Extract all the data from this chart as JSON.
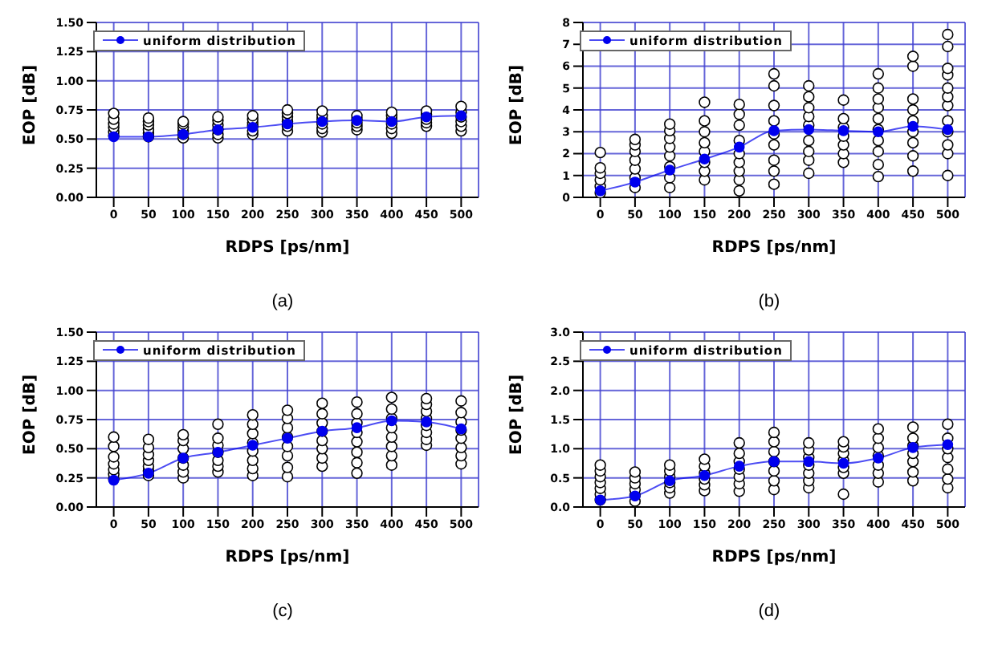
{
  "chart_data": [
    {
      "type": "line",
      "xlabel": "RDPS [ps/nm]",
      "ylabel": "EOP [dB]",
      "annotations": [
        "(a)"
      ],
      "x": [
        0,
        50,
        100,
        150,
        200,
        250,
        300,
        350,
        400,
        450,
        500
      ],
      "xlim": [
        -25,
        525
      ],
      "xticks": [
        0,
        50,
        100,
        150,
        200,
        250,
        300,
        350,
        400,
        450,
        500
      ],
      "ylim": [
        0,
        1.5
      ],
      "yticks": [
        {
          "value": 0,
          "label": "0.00"
        },
        0.25,
        {
          "value": 0.5,
          "label": "0.50"
        },
        0.75,
        {
          "value": 1,
          "label": "1.00"
        },
        1.25,
        {
          "value": 1.5,
          "label": "1.50"
        }
      ],
      "grid": true,
      "legend": "top left",
      "series": [
        {
          "type": "scatter",
          "color": "#000000",
          "marker": "circle",
          "x": [
            0,
            0,
            0,
            0,
            0,
            0,
            50,
            50,
            50,
            50,
            50,
            50,
            100,
            100,
            100,
            100,
            100,
            100,
            150,
            150,
            150,
            150,
            150,
            150,
            200,
            200,
            200,
            200,
            200,
            200,
            250,
            250,
            250,
            250,
            250,
            250,
            300,
            300,
            300,
            300,
            300,
            300,
            350,
            350,
            350,
            350,
            350,
            400,
            400,
            400,
            400,
            400,
            400,
            450,
            450,
            450,
            450,
            450,
            500,
            500,
            500,
            500,
            500,
            500
          ],
          "values": [
            0.53,
            0.56,
            0.6,
            0.63,
            0.67,
            0.72,
            0.52,
            0.55,
            0.58,
            0.62,
            0.65,
            0.68,
            0.51,
            0.54,
            0.57,
            0.6,
            0.63,
            0.65,
            0.51,
            0.54,
            0.58,
            0.62,
            0.66,
            0.69,
            0.54,
            0.57,
            0.61,
            0.64,
            0.67,
            0.7,
            0.57,
            0.61,
            0.65,
            0.69,
            0.72,
            0.75,
            0.56,
            0.59,
            0.63,
            0.67,
            0.7,
            0.74,
            0.58,
            0.61,
            0.64,
            0.67,
            0.7,
            0.55,
            0.59,
            0.63,
            0.67,
            0.7,
            0.73,
            0.61,
            0.64,
            0.67,
            0.71,
            0.74,
            0.57,
            0.61,
            0.65,
            0.69,
            0.73,
            0.78
          ]
        },
        {
          "name": "uniform distribution",
          "color": "#0000ee",
          "marker": "circle",
          "values": [
            0.52,
            0.52,
            0.54,
            0.58,
            0.6,
            0.63,
            0.65,
            0.66,
            0.65,
            0.69,
            0.7
          ]
        }
      ]
    },
    {
      "type": "line",
      "xlabel": "RDPS [ps/nm]",
      "ylabel": "EOP [dB]",
      "annotations": [
        "(b)"
      ],
      "x": [
        0,
        50,
        100,
        150,
        200,
        250,
        300,
        350,
        400,
        450,
        500
      ],
      "xlim": [
        -25,
        525
      ],
      "xticks": [
        0,
        50,
        100,
        150,
        200,
        250,
        300,
        350,
        400,
        450,
        500
      ],
      "ylim": [
        0,
        8
      ],
      "yticks": [
        0,
        1,
        2,
        3,
        4,
        5,
        6,
        7,
        8
      ],
      "grid": true,
      "legend": "top left",
      "series": [
        {
          "type": "scatter",
          "color": "#000000",
          "marker": "circle",
          "x": [
            0,
            0,
            0,
            0,
            0,
            0,
            50,
            50,
            50,
            50,
            50,
            50,
            50,
            100,
            100,
            100,
            100,
            100,
            100,
            100,
            100,
            150,
            150,
            150,
            150,
            150,
            150,
            150,
            150,
            200,
            200,
            200,
            200,
            200,
            200,
            200,
            200,
            200,
            250,
            250,
            250,
            250,
            250,
            250,
            250,
            250,
            250,
            300,
            300,
            300,
            300,
            300,
            300,
            300,
            300,
            300,
            350,
            350,
            350,
            350,
            350,
            350,
            350,
            400,
            400,
            400,
            400,
            400,
            400,
            400,
            400,
            400,
            400,
            450,
            450,
            450,
            450,
            450,
            450,
            450,
            450,
            450,
            500,
            500,
            500,
            500,
            500,
            500,
            500,
            500,
            500,
            500,
            500,
            500
          ],
          "values": [
            0.2,
            0.5,
            0.8,
            1.1,
            1.35,
            2.05,
            0.45,
            0.9,
            1.3,
            1.7,
            2.1,
            2.4,
            2.65,
            0.45,
            0.9,
            1.4,
            1.9,
            2.3,
            2.7,
            3.05,
            3.35,
            0.8,
            1.2,
            1.6,
            2.1,
            2.5,
            3.0,
            3.5,
            4.35,
            0.3,
            0.8,
            1.2,
            1.6,
            2.0,
            2.6,
            3.3,
            3.8,
            4.25,
            0.6,
            1.2,
            1.7,
            2.4,
            2.9,
            3.5,
            4.2,
            5.1,
            5.65,
            1.1,
            1.7,
            2.1,
            2.6,
            3.3,
            3.7,
            4.1,
            4.6,
            5.1,
            1.6,
            2.0,
            2.4,
            2.8,
            3.2,
            3.6,
            4.45,
            0.95,
            1.5,
            2.1,
            2.6,
            3.1,
            3.6,
            4.1,
            4.5,
            5.0,
            5.65,
            1.2,
            1.9,
            2.5,
            3.0,
            3.5,
            4.0,
            4.5,
            6.0,
            6.45,
            1.0,
            2.0,
            2.4,
            3.0,
            3.5,
            4.2,
            4.6,
            5.0,
            5.6,
            5.9,
            6.9,
            7.45
          ]
        },
        {
          "name": "uniform distribution",
          "color": "#0000ee",
          "marker": "circle",
          "values": [
            0.3,
            0.7,
            1.25,
            1.75,
            2.3,
            3.05,
            3.1,
            3.05,
            3.0,
            3.25,
            3.1
          ]
        }
      ]
    },
    {
      "type": "line",
      "xlabel": "RDPS [ps/nm]",
      "ylabel": "EOP [dB]",
      "annotations": [
        "(c)"
      ],
      "x": [
        0,
        50,
        100,
        150,
        200,
        250,
        300,
        350,
        400,
        450,
        500
      ],
      "xlim": [
        -25,
        525
      ],
      "xticks": [
        0,
        50,
        100,
        150,
        200,
        250,
        300,
        350,
        400,
        450,
        500
      ],
      "ylim": [
        0,
        1.5
      ],
      "yticks": [
        {
          "value": 0,
          "label": "0.00"
        },
        0.25,
        {
          "value": 0.5,
          "label": "0.50"
        },
        0.75,
        {
          "value": 1,
          "label": "1.00"
        },
        1.25,
        {
          "value": 1.5,
          "label": "1.50"
        }
      ],
      "grid": true,
      "legend": "top left",
      "series": [
        {
          "type": "scatter",
          "color": "#000000",
          "marker": "circle",
          "x": [
            0,
            0,
            0,
            0,
            0,
            0,
            0,
            50,
            50,
            50,
            50,
            50,
            50,
            50,
            100,
            100,
            100,
            100,
            100,
            100,
            100,
            150,
            150,
            150,
            150,
            150,
            150,
            150,
            200,
            200,
            200,
            200,
            200,
            200,
            200,
            200,
            250,
            250,
            250,
            250,
            250,
            250,
            250,
            250,
            300,
            300,
            300,
            300,
            300,
            300,
            300,
            300,
            350,
            350,
            350,
            350,
            350,
            350,
            350,
            350,
            400,
            400,
            400,
            400,
            400,
            400,
            400,
            400,
            450,
            450,
            450,
            450,
            450,
            450,
            450,
            450,
            500,
            500,
            500,
            500,
            500,
            500,
            500,
            500
          ],
          "values": [
            0.24,
            0.28,
            0.32,
            0.37,
            0.43,
            0.52,
            0.6,
            0.27,
            0.31,
            0.35,
            0.4,
            0.45,
            0.51,
            0.58,
            0.25,
            0.3,
            0.36,
            0.42,
            0.5,
            0.57,
            0.62,
            0.3,
            0.35,
            0.4,
            0.47,
            0.53,
            0.59,
            0.71,
            0.27,
            0.33,
            0.4,
            0.48,
            0.55,
            0.63,
            0.71,
            0.79,
            0.26,
            0.34,
            0.44,
            0.52,
            0.6,
            0.68,
            0.76,
            0.83,
            0.35,
            0.42,
            0.5,
            0.57,
            0.65,
            0.72,
            0.8,
            0.89,
            0.29,
            0.38,
            0.47,
            0.56,
            0.64,
            0.72,
            0.8,
            0.9,
            0.36,
            0.44,
            0.52,
            0.6,
            0.68,
            0.76,
            0.84,
            0.94,
            0.53,
            0.58,
            0.64,
            0.7,
            0.76,
            0.82,
            0.88,
            0.93,
            0.37,
            0.44,
            0.51,
            0.59,
            0.66,
            0.73,
            0.81,
            0.91
          ]
        },
        {
          "name": "uniform distribution",
          "color": "#0000ee",
          "marker": "circle",
          "values": [
            0.23,
            0.29,
            0.42,
            0.47,
            0.53,
            0.59,
            0.65,
            0.68,
            0.74,
            0.73,
            0.67
          ]
        }
      ]
    },
    {
      "type": "line",
      "xlabel": "RDPS [ps/nm]",
      "ylabel": "EOP [dB]",
      "annotations": [
        "(d)"
      ],
      "x": [
        0,
        50,
        100,
        150,
        200,
        250,
        300,
        350,
        400,
        450,
        500
      ],
      "xlim": [
        -25,
        525
      ],
      "xticks": [
        0,
        50,
        100,
        150,
        200,
        250,
        300,
        350,
        400,
        450,
        500
      ],
      "ylim": [
        0,
        3
      ],
      "yticks": [
        {
          "value": 0,
          "label": "0.0"
        },
        0.5,
        {
          "value": 1,
          "label": "1.0"
        },
        1.5,
        {
          "value": 2,
          "label": "2.0"
        },
        2.5,
        {
          "value": 3,
          "label": "3.0"
        }
      ],
      "grid": true,
      "legend": "top left",
      "series": [
        {
          "type": "scatter",
          "color": "#000000",
          "marker": "circle",
          "x": [
            0,
            0,
            0,
            0,
            0,
            0,
            0,
            50,
            50,
            50,
            50,
            50,
            50,
            100,
            100,
            100,
            100,
            100,
            100,
            150,
            150,
            150,
            150,
            150,
            150,
            200,
            200,
            200,
            200,
            200,
            200,
            200,
            250,
            250,
            250,
            250,
            250,
            250,
            250,
            300,
            300,
            300,
            300,
            300,
            300,
            300,
            350,
            350,
            350,
            350,
            350,
            350,
            350,
            400,
            400,
            400,
            400,
            400,
            400,
            400,
            450,
            450,
            450,
            450,
            450,
            450,
            450,
            500,
            500,
            500,
            500,
            500,
            500,
            500
          ],
          "values": [
            0.12,
            0.22,
            0.32,
            0.42,
            0.52,
            0.62,
            0.72,
            0.1,
            0.2,
            0.3,
            0.4,
            0.5,
            0.6,
            0.24,
            0.33,
            0.42,
            0.52,
            0.62,
            0.72,
            0.28,
            0.38,
            0.48,
            0.58,
            0.7,
            0.82,
            0.27,
            0.4,
            0.52,
            0.65,
            0.78,
            0.92,
            1.1,
            0.3,
            0.45,
            0.62,
            0.78,
            0.95,
            1.12,
            1.28,
            0.33,
            0.45,
            0.58,
            0.72,
            0.85,
            0.98,
            1.1,
            0.22,
            0.58,
            0.68,
            0.8,
            0.92,
            1.03,
            1.12,
            0.43,
            0.58,
            0.72,
            0.88,
            1.02,
            1.18,
            1.34,
            0.45,
            0.6,
            0.78,
            0.92,
            1.05,
            1.18,
            1.37,
            0.33,
            0.48,
            0.65,
            0.85,
            1.0,
            1.18,
            1.42
          ]
        },
        {
          "name": "uniform distribution",
          "color": "#0000ee",
          "marker": "circle",
          "values": [
            0.12,
            0.19,
            0.45,
            0.54,
            0.7,
            0.78,
            0.78,
            0.75,
            0.84,
            1.02,
            1.07
          ]
        }
      ]
    }
  ]
}
